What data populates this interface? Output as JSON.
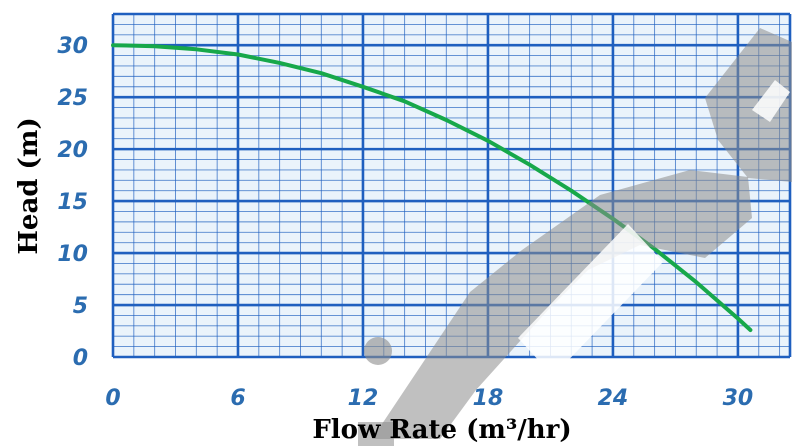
{
  "chart_data": {
    "type": "line",
    "xlabel": "Flow Rate (m³/hr)",
    "ylabel": "Head (m)",
    "xlim": [
      0,
      32.5
    ],
    "ylim": [
      0,
      33
    ],
    "x_ticks": [
      "0",
      "6",
      "12",
      "18",
      "24",
      "30"
    ],
    "y_ticks": [
      "0",
      "5",
      "10",
      "15",
      "20",
      "25",
      "30"
    ],
    "grid": true,
    "colors": {
      "grid": "#1f5fbf",
      "plot_background": "#eaf3fb",
      "line": "#17a84a",
      "tick_labels": "#2b6cb0",
      "watermark": "#8c8c8c"
    },
    "series": [
      {
        "x": [
          0,
          2,
          4,
          6,
          8,
          10,
          12,
          14,
          16,
          18,
          20,
          22,
          24,
          26,
          28,
          30,
          30.6
        ],
        "y": [
          30,
          29.9,
          29.6,
          29.1,
          28.3,
          27.3,
          26.0,
          24.6,
          22.8,
          20.8,
          18.5,
          16.0,
          13.3,
          10.4,
          7.2,
          3.7,
          2.6
        ]
      }
    ]
  }
}
